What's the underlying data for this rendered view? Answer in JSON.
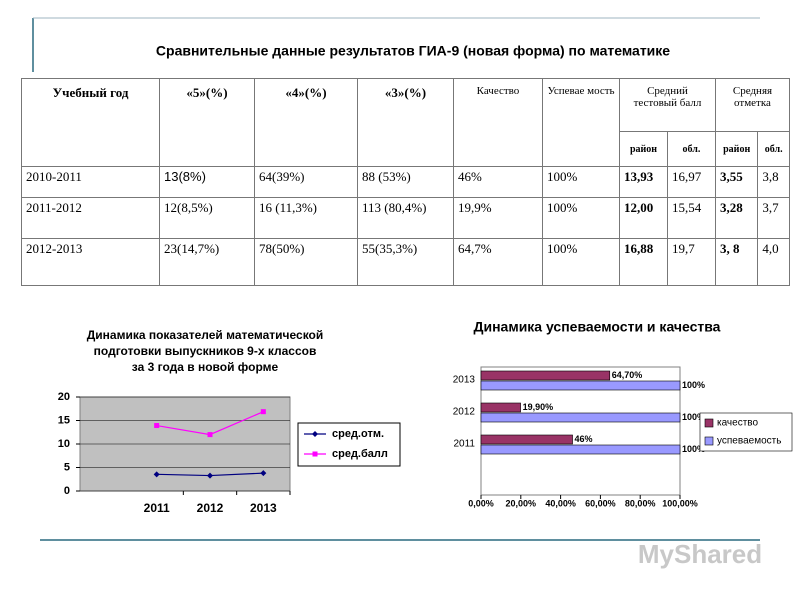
{
  "title": "Сравнительные данные результатов ГИА-9 (новая форма) по математике",
  "table": {
    "header": [
      "Учебный год",
      "«5»(%)",
      "«4»(%)",
      "«3»(%)",
      "Качество",
      "Успевае мость",
      "Средний тестовый балл",
      "Средняя отметка"
    ],
    "subheader": [
      "район",
      "обл.",
      "район",
      "обл."
    ],
    "rows": [
      [
        "2010-2011",
        "13(8%)",
        "64(39%)",
        "88 (53%)",
        "46%",
        "100%",
        "13,93",
        "16,97",
        "3,55",
        "3,8"
      ],
      [
        "2011-2012",
        "12(8,5%)",
        "16 (11,3%)",
        "113 (80,4%)",
        "19,9%",
        "100%",
        "12,00",
        "15,54",
        "3,28",
        "3,7"
      ],
      [
        "2012-2013",
        "23(14,7%)",
        "78(50%)",
        "55(35,3%)",
        "64,7%",
        "100%",
        "16,88",
        "19,7",
        "3, 8",
        "4,0"
      ]
    ]
  },
  "chart_data": [
    {
      "type": "line",
      "title": [
        "Динамика показателей математической",
        "подготовки выпускников 9-х классов",
        "за 3 года в новой форме"
      ],
      "categories": [
        "2011",
        "2012",
        "2013"
      ],
      "series": [
        {
          "name": "сред.отм.",
          "color": "#000080",
          "marker": "diamond",
          "values": [
            3.55,
            3.28,
            3.8
          ]
        },
        {
          "name": "сред.балл",
          "color": "#ff00ff",
          "marker": "square",
          "values": [
            13.93,
            12.0,
            16.88
          ]
        }
      ],
      "ylim": [
        0,
        20
      ],
      "yticks": [
        0,
        5,
        10,
        15,
        20
      ],
      "grid": true,
      "legend": "right"
    },
    {
      "type": "hbar",
      "title": "Динамика успеваемости и качества",
      "categories": [
        "2011",
        "2012",
        "2013"
      ],
      "series": [
        {
          "name": "качество",
          "color": "#993366",
          "values": [
            46,
            19.9,
            64.7
          ],
          "value_labels": [
            "46%",
            "19,90%",
            "64,70%"
          ]
        },
        {
          "name": "успеваемость",
          "color": "#9999ff",
          "values": [
            100,
            100,
            100
          ],
          "value_labels": [
            "100%",
            "100%",
            "100%"
          ]
        }
      ],
      "xlim": [
        0,
        100
      ],
      "xticks": [
        {
          "value": 0,
          "label": "0,00%"
        },
        {
          "value": 20,
          "label": "20,00%"
        },
        {
          "value": 40,
          "label": "40,00%"
        },
        {
          "value": 60,
          "label": "60,00%"
        },
        {
          "value": 80,
          "label": "80,00%"
        },
        {
          "value": 100,
          "label": "100,00%"
        }
      ],
      "legend": "right"
    }
  ],
  "watermark": "MyShared"
}
